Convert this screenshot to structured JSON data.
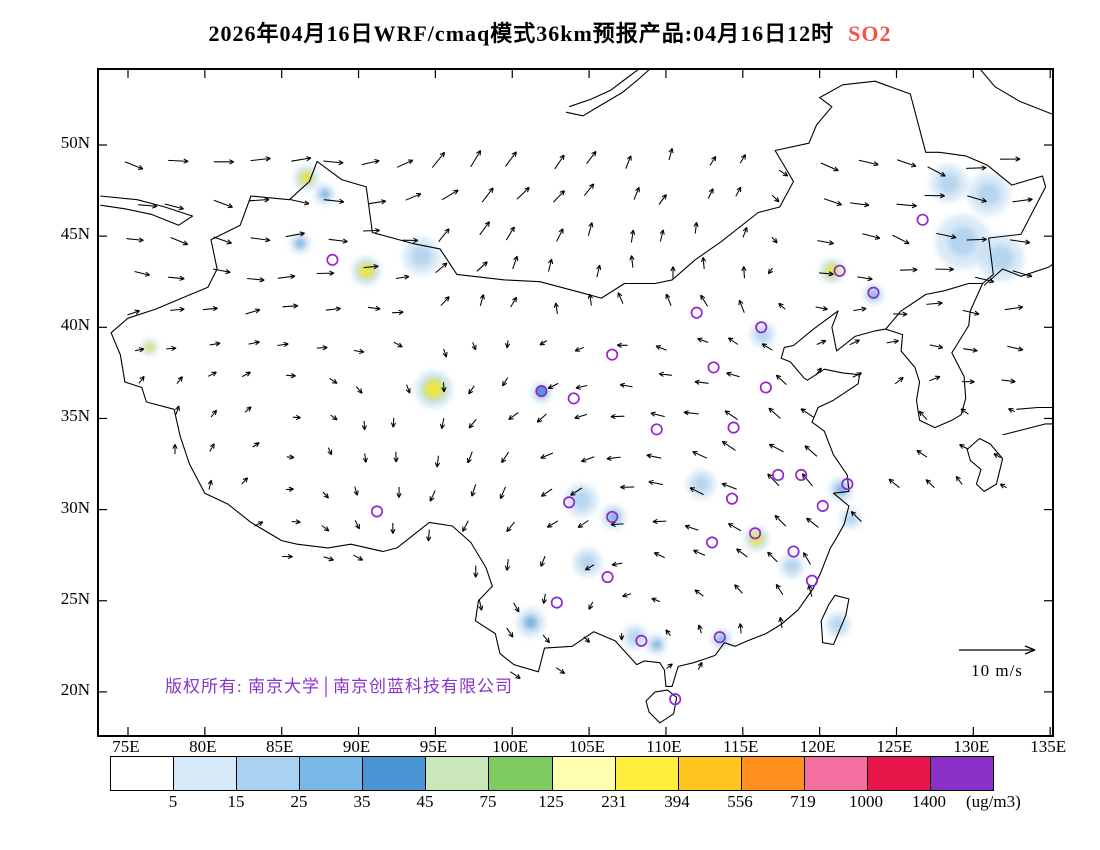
{
  "title": {
    "text": "2026年04月16日WRF/cmaq模式36km预报产品:04月16日12时",
    "pollutant": "SO2"
  },
  "colors": {
    "pollutant": "#F5524C",
    "copyright": "#8833CC",
    "station_ring": "#9327CE",
    "coastline": "#000000",
    "arrow": "#000000"
  },
  "axes": {
    "lat_ticks": [
      "50N",
      "45N",
      "40N",
      "35N",
      "30N",
      "25N",
      "20N"
    ],
    "lon_ticks": [
      "75E",
      "80E",
      "85E",
      "90E",
      "95E",
      "100E",
      "105E",
      "110E",
      "115E",
      "120E",
      "125E",
      "130E",
      "135E"
    ]
  },
  "map": {
    "copyright": "版权所有: 南京大学│南京创蓝科技有限公司",
    "wind_scale_label": "10 m/s"
  },
  "colorbar": {
    "unit": "(ug/m3)",
    "tick_labels": [
      "5",
      "15",
      "25",
      "35",
      "45",
      "75",
      "125",
      "231",
      "394",
      "556",
      "719",
      "1000",
      "1400"
    ],
    "segment_colors": [
      "#FFFFFF",
      "#D6E9F8",
      "#A9D2F2",
      "#79B7E6",
      "#4A94D4",
      "#C9E7BA",
      "#7FCB5F",
      "#FFFFB0",
      "#FFED3C",
      "#FFC41E",
      "#FF8F1E",
      "#F56EA0",
      "#E8174B",
      "#8B2FC9"
    ]
  },
  "stations": [
    {
      "lon": 126.7,
      "lat": 45.9
    },
    {
      "lon": 88.3,
      "lat": 43.7
    },
    {
      "lon": 121.3,
      "lat": 43.1
    },
    {
      "lon": 123.5,
      "lat": 41.9
    },
    {
      "lon": 116.2,
      "lat": 40.0
    },
    {
      "lon": 112.0,
      "lat": 40.8
    },
    {
      "lon": 106.5,
      "lat": 38.5
    },
    {
      "lon": 113.1,
      "lat": 37.8
    },
    {
      "lon": 116.5,
      "lat": 36.7
    },
    {
      "lon": 101.9,
      "lat": 36.5,
      "fill": "#5E93D6"
    },
    {
      "lon": 104.0,
      "lat": 36.1
    },
    {
      "lon": 109.4,
      "lat": 34.4
    },
    {
      "lon": 114.4,
      "lat": 34.5
    },
    {
      "lon": 121.8,
      "lat": 31.4
    },
    {
      "lon": 118.8,
      "lat": 31.9
    },
    {
      "lon": 103.7,
      "lat": 30.4
    },
    {
      "lon": 106.5,
      "lat": 29.6
    },
    {
      "lon": 91.2,
      "lat": 29.9
    },
    {
      "lon": 115.8,
      "lat": 28.7
    },
    {
      "lon": 118.3,
      "lat": 27.7
    },
    {
      "lon": 106.2,
      "lat": 26.3
    },
    {
      "lon": 119.5,
      "lat": 26.1
    },
    {
      "lon": 102.9,
      "lat": 24.9
    },
    {
      "lon": 108.4,
      "lat": 22.8
    },
    {
      "lon": 113.5,
      "lat": 23.0
    },
    {
      "lon": 110.6,
      "lat": 19.6
    },
    {
      "lon": 114.3,
      "lat": 30.6
    },
    {
      "lon": 113.0,
      "lat": 28.2
    },
    {
      "lon": 120.2,
      "lat": 30.2
    },
    {
      "lon": 117.3,
      "lat": 31.9
    }
  ],
  "hotspots": [
    {
      "lon": 86.6,
      "lat": 48.2,
      "r": 6,
      "level": "high"
    },
    {
      "lon": 90.5,
      "lat": 43.1,
      "r": 7,
      "level": "high"
    },
    {
      "lon": 94.9,
      "lat": 36.6,
      "r": 9,
      "level": "high"
    },
    {
      "lon": 120.8,
      "lat": 43.1,
      "r": 6,
      "level": "high"
    },
    {
      "lon": 115.9,
      "lat": 28.4,
      "r": 6,
      "level": "high"
    },
    {
      "lon": 76.4,
      "lat": 38.9,
      "r": 4,
      "level": "high"
    },
    {
      "lon": 87.8,
      "lat": 47.3,
      "r": 5,
      "level": "mid"
    },
    {
      "lon": 86.2,
      "lat": 44.6,
      "r": 5,
      "level": "mid"
    },
    {
      "lon": 123.5,
      "lat": 41.8,
      "r": 5,
      "level": "mid"
    },
    {
      "lon": 101.9,
      "lat": 36.4,
      "r": 5,
      "level": "mid"
    },
    {
      "lon": 106.6,
      "lat": 29.6,
      "r": 6,
      "level": "mid"
    },
    {
      "lon": 101.2,
      "lat": 23.8,
      "r": 7,
      "level": "mid"
    },
    {
      "lon": 109.4,
      "lat": 22.6,
      "r": 5,
      "level": "mid"
    },
    {
      "lon": 121.4,
      "lat": 31.1,
      "r": 6,
      "level": "mid"
    },
    {
      "lon": 113.6,
      "lat": 22.9,
      "r": 5,
      "level": "mid"
    },
    {
      "lon": 94.1,
      "lat": 43.9,
      "r": 9,
      "level": "low"
    },
    {
      "lon": 129.3,
      "lat": 44.7,
      "r": 13,
      "level": "low"
    },
    {
      "lon": 131.8,
      "lat": 43.8,
      "r": 11,
      "level": "low"
    },
    {
      "lon": 131.0,
      "lat": 47.3,
      "r": 10,
      "level": "low"
    },
    {
      "lon": 128.4,
      "lat": 47.9,
      "r": 9,
      "level": "low"
    },
    {
      "lon": 121.2,
      "lat": 23.7,
      "r": 6,
      "level": "low"
    },
    {
      "lon": 104.9,
      "lat": 27.1,
      "r": 7,
      "level": "low"
    },
    {
      "lon": 112.3,
      "lat": 31.4,
      "r": 7,
      "level": "low"
    },
    {
      "lon": 116.3,
      "lat": 39.6,
      "r": 6,
      "level": "low"
    },
    {
      "lon": 118.2,
      "lat": 26.9,
      "r": 6,
      "level": "low"
    },
    {
      "lon": 104.5,
      "lat": 30.5,
      "r": 8,
      "level": "low"
    },
    {
      "lon": 108.0,
      "lat": 23.0,
      "r": 6,
      "level": "low"
    },
    {
      "lon": 122.0,
      "lat": 29.5,
      "r": 5,
      "level": "low"
    }
  ]
}
